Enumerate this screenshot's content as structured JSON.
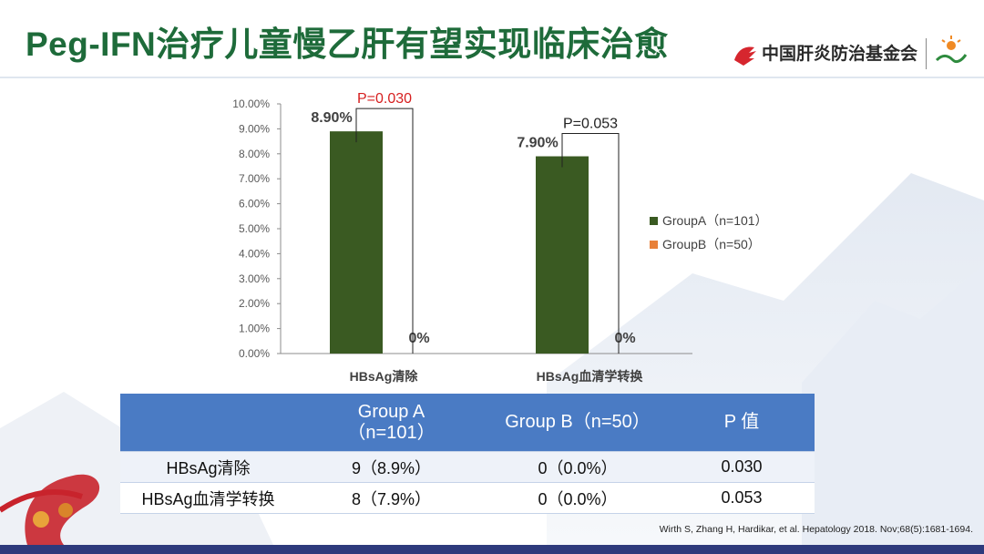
{
  "title": "Peg-IFN治疗儿童慢乙肝有望实现临床治愈",
  "logo": {
    "text": "中国肝炎防治基金会"
  },
  "colors": {
    "groupA": "#3a5a22",
    "groupB": "#e8813a",
    "title": "#1e6b3a",
    "table_header": "#4a7bc4",
    "p_sig": "#d61f1f"
  },
  "chart_data": {
    "type": "bar",
    "categories": [
      "HBsAg清除",
      "HBsAg血清学转换"
    ],
    "series": [
      {
        "name": "GroupA（n=101）",
        "values": [
          8.9,
          7.9
        ],
        "labels": [
          "8.90%",
          "7.90%"
        ]
      },
      {
        "name": "GroupB（n=50）",
        "values": [
          0,
          0
        ],
        "labels": [
          "0%",
          "0%"
        ]
      }
    ],
    "ylim": [
      0,
      10
    ],
    "yticks": [
      "0.00%",
      "1.00%",
      "2.00%",
      "3.00%",
      "4.00%",
      "5.00%",
      "6.00%",
      "7.00%",
      "8.00%",
      "9.00%",
      "10.00%"
    ],
    "annotations": [
      {
        "text": "P=0.030",
        "category": 0,
        "significant": true
      },
      {
        "text": "P=0.053",
        "category": 1,
        "significant": false
      }
    ],
    "legend_position": "right",
    "grid": false
  },
  "table": {
    "headers": [
      "",
      "Group A\n（n=101）",
      "Group B（n=50）",
      "P 值"
    ],
    "rows": [
      [
        "HBsAg清除",
        "9（8.9%）",
        "0（0.0%）",
        "0.030"
      ],
      [
        "HBsAg血清学转换",
        "8（7.9%）",
        "0（0.0%）",
        "0.053"
      ]
    ]
  },
  "citation": "Wirth S, Zhang H, Hardikar, et al. Hepatology 2018. Nov;68(5):1681-1694."
}
